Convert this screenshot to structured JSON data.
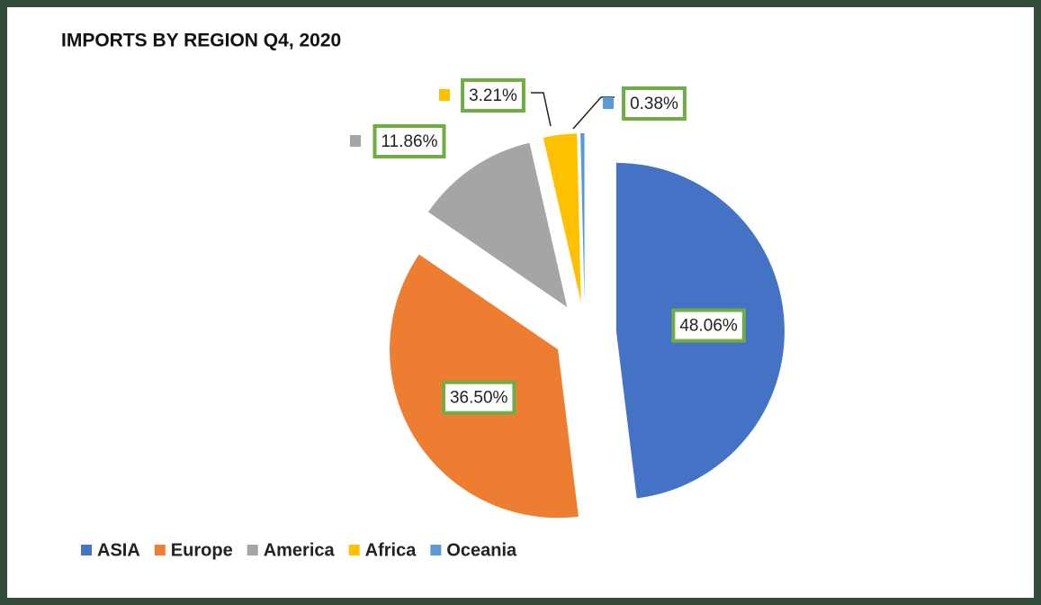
{
  "chart_data": {
    "type": "pie",
    "title": "IMPORTS BY REGION Q4, 2020",
    "categories": [
      "ASIA",
      "Europe",
      "America",
      "Africa",
      "Oceania"
    ],
    "values": [
      48.06,
      36.5,
      11.86,
      3.21,
      0.38
    ],
    "value_labels": [
      "48.06%",
      "36.50%",
      "11.86%",
      "3.21%",
      "0.38%"
    ],
    "colors": [
      "#4472c4",
      "#ed7d31",
      "#a5a5a5",
      "#ffc000",
      "#5b9bd5"
    ],
    "exploded": true,
    "legend": "bottom"
  }
}
